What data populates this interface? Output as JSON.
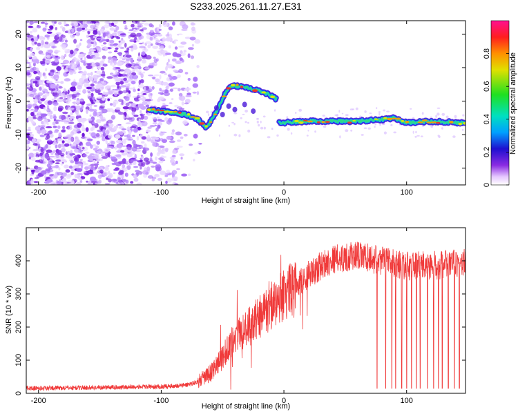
{
  "title": "S233.2025.261.11.27.E31",
  "chart_data": [
    {
      "type": "heatmap",
      "name": "spectrogram",
      "xlabel": "Height of straight line (km)",
      "ylabel": "Frequency (Hz)",
      "xlim": [
        -210,
        148
      ],
      "ylim": [
        -25,
        24
      ],
      "xticks": [
        -200,
        -100,
        0,
        100
      ],
      "yticks": [
        -20,
        -10,
        0,
        10,
        20
      ],
      "colorbar": {
        "label": "Normalized spectral amplitude",
        "range": [
          0,
          1
        ],
        "ticks": [
          0,
          0.2,
          0.4,
          0.6,
          0.8
        ]
      },
      "ridge_segments": [
        {
          "x": [
            -110,
            -100,
            -90,
            -80,
            -70,
            -63,
            -58,
            -52,
            -47,
            -42,
            -35,
            -28,
            -20,
            -12,
            -6
          ],
          "y": [
            -2.5,
            -3,
            -3.5,
            -4,
            -5.5,
            -8,
            -5,
            -1,
            3,
            4.5,
            4.5,
            4,
            3,
            2,
            0.5
          ]
        },
        {
          "x": [
            -4,
            20,
            40,
            60,
            80,
            90,
            100,
            120,
            148
          ],
          "y": [
            -6.5,
            -6,
            -6,
            -6,
            -5.5,
            -5,
            -6.5,
            -6,
            -6.5
          ]
        }
      ]
    },
    {
      "type": "line",
      "name": "snr",
      "xlabel": "Height of straight line (km)",
      "ylabel": "SNR (10 * v/v)",
      "xlim": [
        -210,
        148
      ],
      "ylim": [
        0,
        500
      ],
      "xticks": [
        -200,
        -100,
        0,
        100
      ],
      "yticks": [
        0,
        100,
        200,
        300,
        400
      ],
      "color": "#f03a3a",
      "trend": {
        "x": [
          -210,
          -100,
          -80,
          -70,
          -60,
          -50,
          -40,
          -30,
          -20,
          -10,
          0,
          10,
          20,
          30,
          40,
          60,
          80,
          100,
          120,
          148
        ],
        "y": [
          15,
          20,
          25,
          35,
          60,
          110,
          170,
          200,
          230,
          260,
          300,
          320,
          355,
          385,
          405,
          415,
          400,
          385,
          385,
          395
        ]
      },
      "dropouts_x": [
        76,
        83,
        88,
        91,
        96,
        100,
        104,
        108,
        111,
        117,
        122,
        126,
        129,
        134,
        139,
        143
      ]
    }
  ]
}
